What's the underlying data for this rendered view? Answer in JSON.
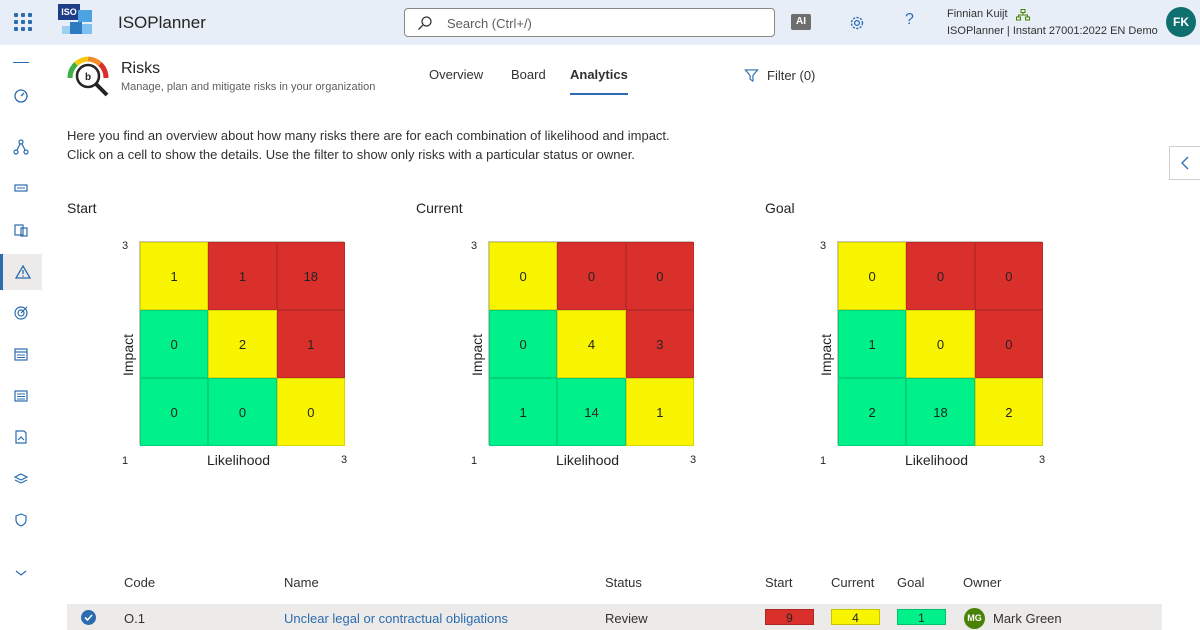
{
  "app": {
    "title": "ISOPlanner",
    "logo_text": "ISO"
  },
  "search": {
    "placeholder": "Search (Ctrl+/)"
  },
  "topbar": {
    "ai_label": "AI",
    "help_label": "?",
    "user_name": "Finnian Kuijt",
    "tenant": "ISOPlanner | Instant 27001:2022 EN Demo",
    "avatar_initials": "FK"
  },
  "page": {
    "title": "Risks",
    "subtitle": "Manage, plan and mitigate risks in your organization"
  },
  "tabs": [
    {
      "label": "Overview",
      "active": false
    },
    {
      "label": "Board",
      "active": false
    },
    {
      "label": "Analytics",
      "active": true
    }
  ],
  "filter": {
    "label": "Filter (0)"
  },
  "intro": {
    "line1": "Here you find an overview about how many risks there are for each combination of likelihood and impact.",
    "line2": "Click on a cell to show the details. Use the filter to show only risks with a particular status or owner."
  },
  "matrices": [
    {
      "title": "Start",
      "rows": [
        [
          "1",
          "1",
          "18"
        ],
        [
          "0",
          "2",
          "1"
        ],
        [
          "0",
          "0",
          "0"
        ]
      ]
    },
    {
      "title": "Current",
      "rows": [
        [
          "0",
          "0",
          "0"
        ],
        [
          "0",
          "4",
          "3"
        ],
        [
          "1",
          "14",
          "1"
        ]
      ]
    },
    {
      "title": "Goal",
      "rows": [
        [
          "0",
          "0",
          "0"
        ],
        [
          "1",
          "0",
          "0"
        ],
        [
          "2",
          "18",
          "2"
        ]
      ]
    }
  ],
  "matrix_colors": [
    [
      "y",
      "r",
      "r"
    ],
    [
      "g",
      "y",
      "r"
    ],
    [
      "g",
      "g",
      "y"
    ]
  ],
  "axis": {
    "x_label": "Likelihood",
    "y_label": "Impact",
    "min": "1",
    "max": "3"
  },
  "colors": {
    "green": "#00f08a",
    "yellow": "#f9f500",
    "red": "#d9302c",
    "accent": "#2b6cb0"
  },
  "table": {
    "headers": {
      "code": "Code",
      "name": "Name",
      "status": "Status",
      "start": "Start",
      "current": "Current",
      "goal": "Goal",
      "owner": "Owner"
    },
    "rows": [
      {
        "code": "O.1",
        "name": "Unclear legal or contractual obligations",
        "status": "Review",
        "start": "9",
        "current": "4",
        "goal": "1",
        "owner_initials": "MG",
        "owner": "Mark Green"
      }
    ]
  }
}
